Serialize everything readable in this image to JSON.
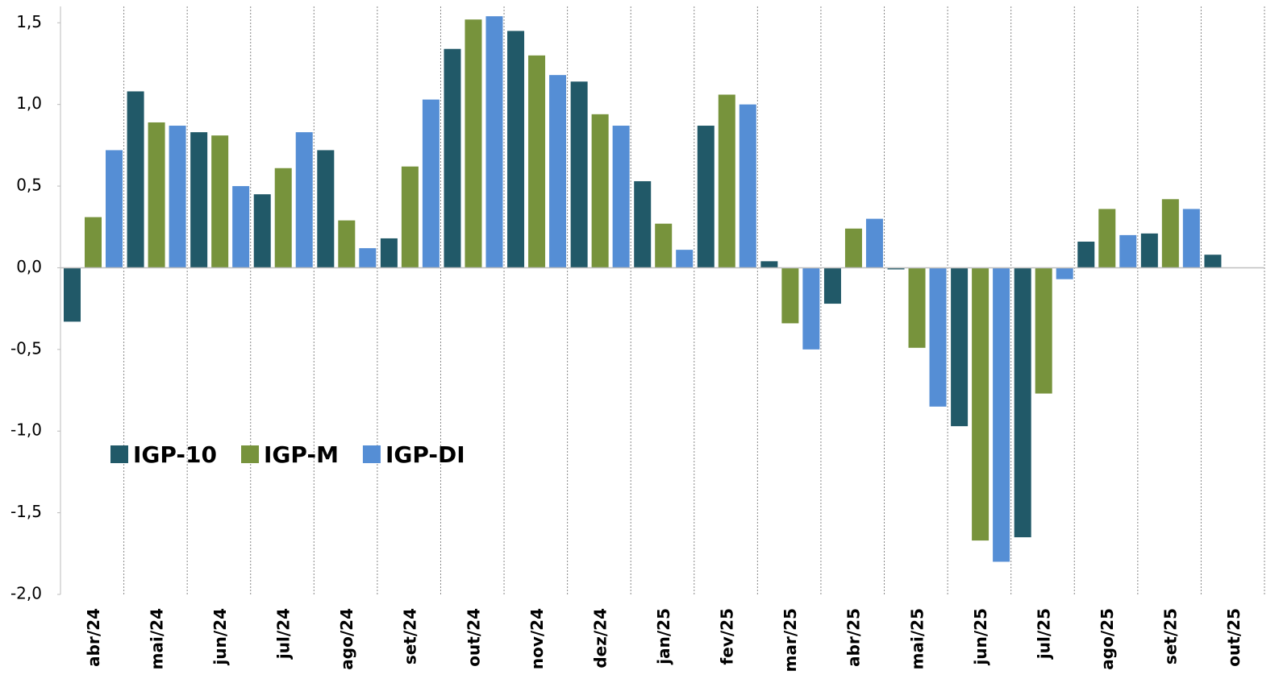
{
  "chart_data": {
    "type": "bar",
    "categories": [
      "abr/24",
      "mai/24",
      "jun/24",
      "jul/24",
      "ago/24",
      "set/24",
      "out/24",
      "nov/24",
      "dez/24",
      "jan/25",
      "fev/25",
      "mar/25",
      "abr/25",
      "mai/25",
      "jun/25",
      "jul/25",
      "ago/25",
      "set/25",
      "out/25"
    ],
    "series": [
      {
        "name": "IGP-10",
        "color": "#215968",
        "values": [
          -0.33,
          1.08,
          0.83,
          0.45,
          0.72,
          0.18,
          1.34,
          1.45,
          1.14,
          0.53,
          0.87,
          0.04,
          -0.22,
          -0.01,
          -0.97,
          -1.65,
          0.16,
          0.21,
          0.08
        ]
      },
      {
        "name": "IGP-M",
        "color": "#77933c",
        "values": [
          0.31,
          0.89,
          0.81,
          0.61,
          0.29,
          0.62,
          1.52,
          1.3,
          0.94,
          0.27,
          1.06,
          -0.34,
          0.24,
          -0.49,
          -1.67,
          -0.77,
          0.36,
          0.42,
          null
        ]
      },
      {
        "name": "IGP-DI",
        "color": "#558ed5",
        "values": [
          0.72,
          0.87,
          0.5,
          0.83,
          0.12,
          1.03,
          1.54,
          1.18,
          0.87,
          0.11,
          1.0,
          -0.5,
          0.3,
          -0.85,
          -1.8,
          -0.07,
          0.2,
          0.36,
          null
        ]
      }
    ],
    "ylim": [
      -2.0,
      1.6
    ],
    "yticks": [
      {
        "value": -2.0,
        "label": "-2,0"
      },
      {
        "value": -1.5,
        "label": "-1,5"
      },
      {
        "value": -1.0,
        "label": "-1,0"
      },
      {
        "value": -0.5,
        "label": "-0,5"
      },
      {
        "value": 0,
        "label": "0,0"
      },
      {
        "value": 0.5,
        "label": "0,5"
      },
      {
        "value": 1.0,
        "label": "1,0"
      },
      {
        "value": 1.5,
        "label": "1,5"
      }
    ],
    "legend": "lower-left"
  }
}
